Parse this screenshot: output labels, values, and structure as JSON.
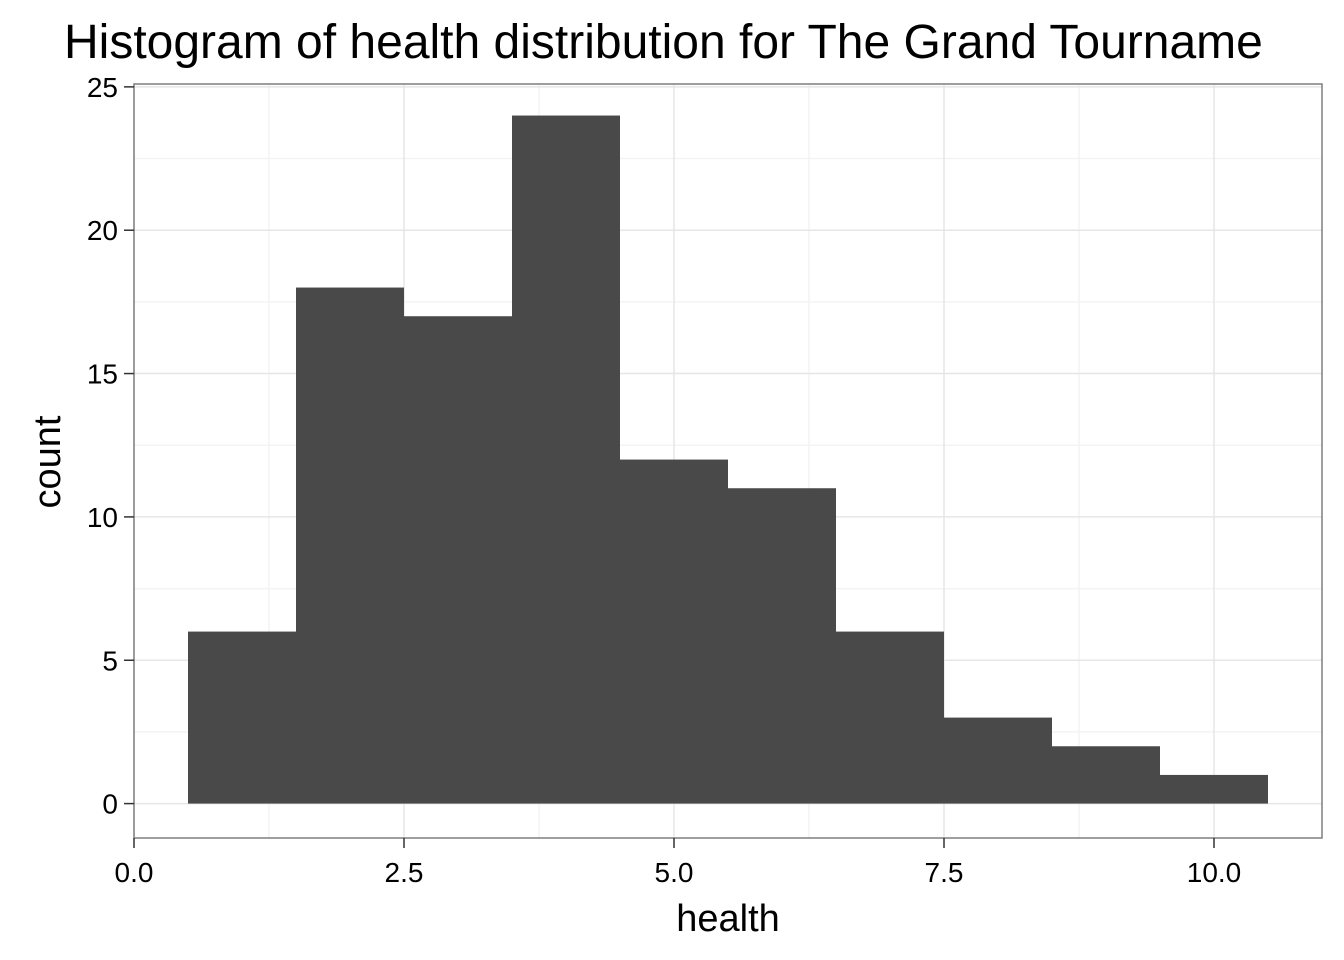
{
  "chart_data": {
    "type": "bar",
    "title": "Histogram of health distribution for The Grand Tourname",
    "xlabel": "health",
    "ylabel": "count",
    "xlim": [
      0,
      11
    ],
    "ylim": [
      -1.2,
      25.1
    ],
    "x_ticks": [
      0,
      2.5,
      5,
      7.5,
      10
    ],
    "x_tick_labels": [
      "0.0",
      "2.5",
      "5.0",
      "7.5",
      "10.0"
    ],
    "y_ticks": [
      0,
      5,
      10,
      15,
      20,
      25
    ],
    "y_tick_labels": [
      "0",
      "5",
      "10",
      "15",
      "20",
      "25"
    ],
    "grid": true,
    "bin_width": 1,
    "bins": [
      {
        "x": 1,
        "count": 6
      },
      {
        "x": 2,
        "count": 18
      },
      {
        "x": 3,
        "count": 17
      },
      {
        "x": 4,
        "count": 24
      },
      {
        "x": 5,
        "count": 12
      },
      {
        "x": 6,
        "count": 11
      },
      {
        "x": 7,
        "count": 6
      },
      {
        "x": 8,
        "count": 3
      },
      {
        "x": 9,
        "count": 2
      },
      {
        "x": 10,
        "count": 1
      }
    ],
    "bar_color": "#494949",
    "panel_border_color": "#7f7f7f",
    "grid_major_color": "#e6e6e6",
    "grid_minor_color": "#f3f3f3"
  }
}
